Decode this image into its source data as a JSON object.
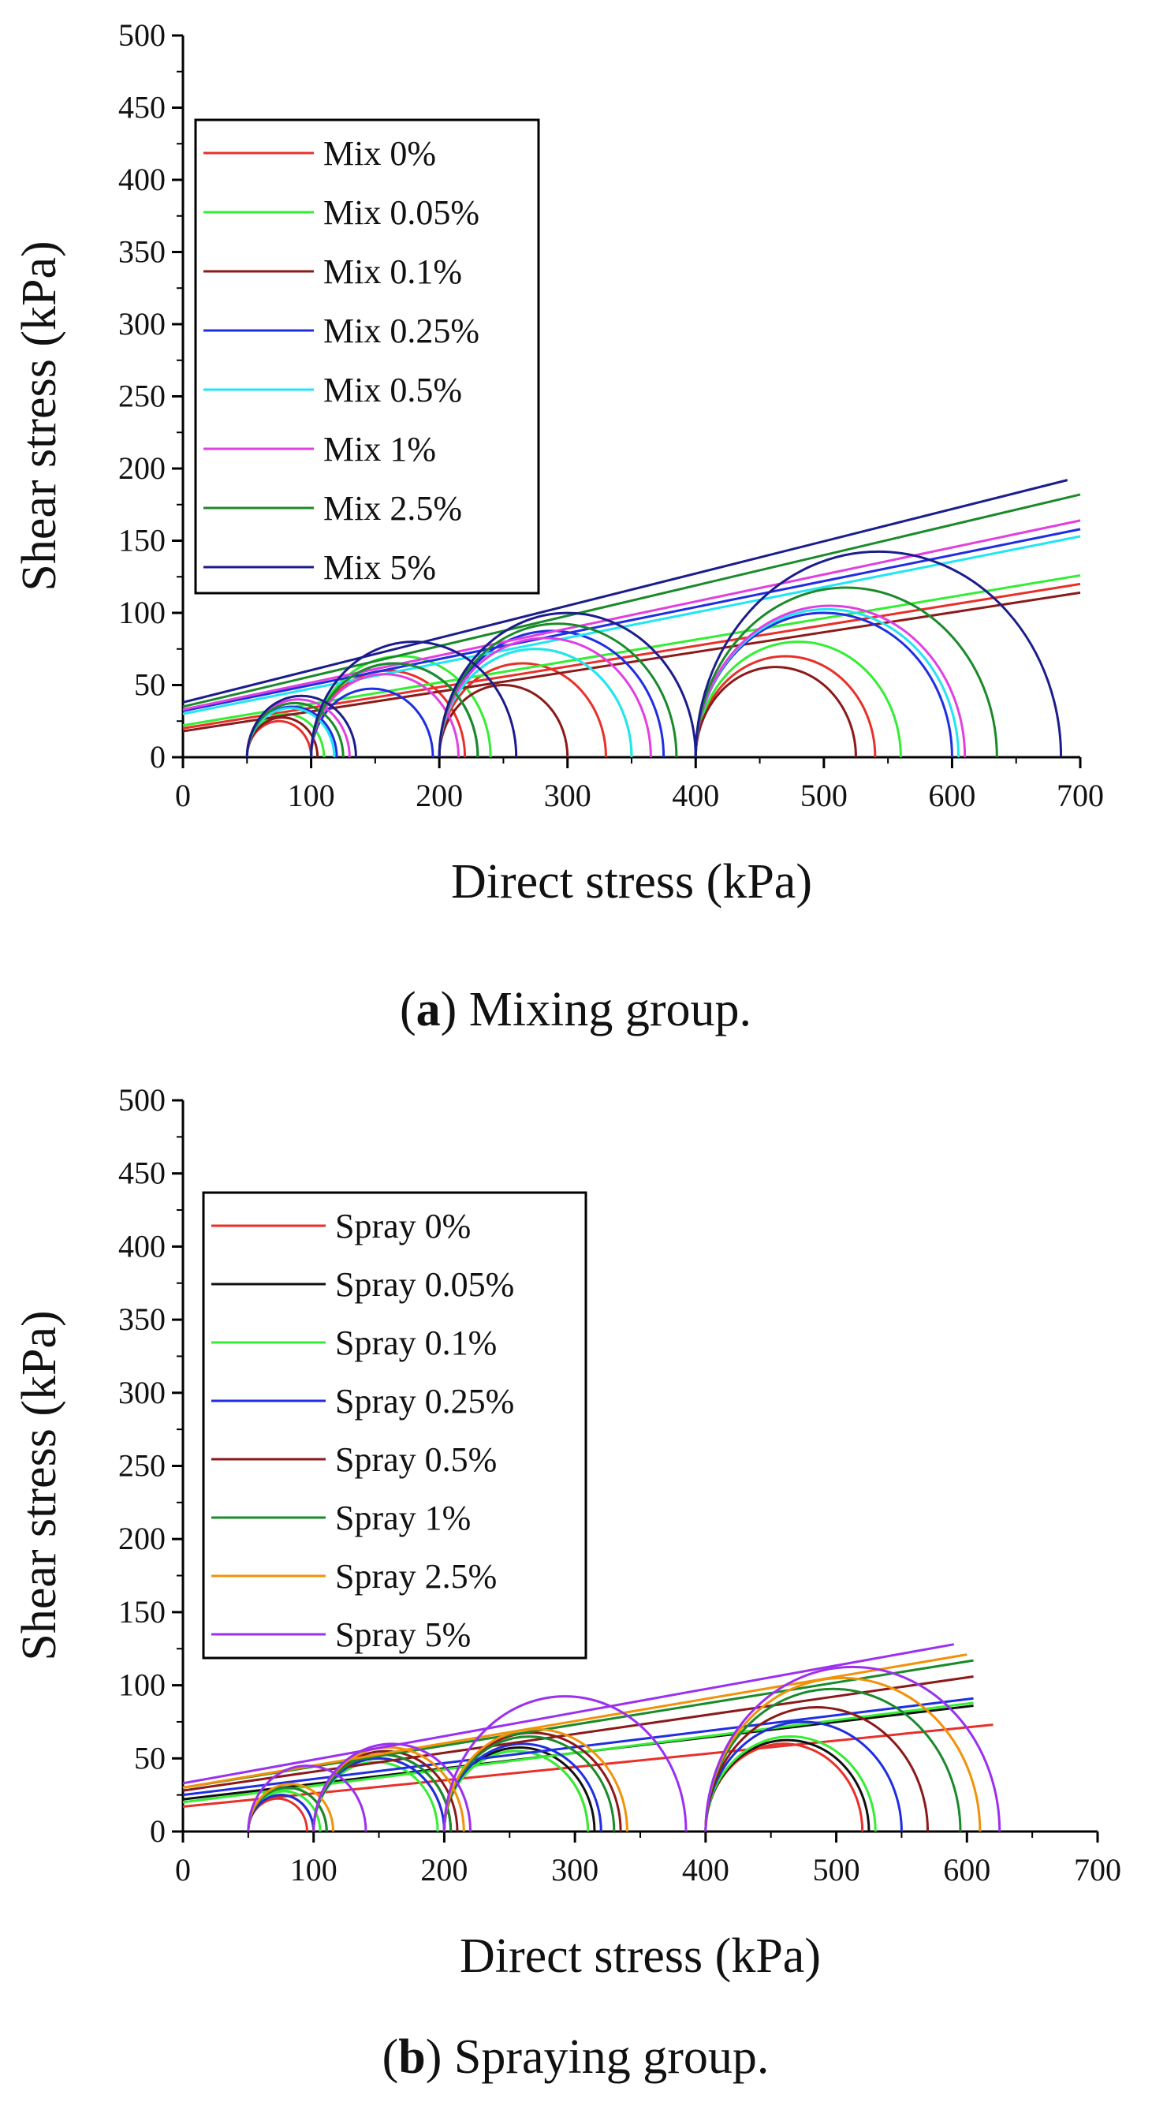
{
  "chart_data": [
    {
      "type": "line",
      "caption": {
        "label": "a",
        "text": "Mixing group."
      },
      "xlabel": "Direct stress (kPa)",
      "ylabel": "Shear stress (kPa)",
      "xlim": [
        0,
        700
      ],
      "ylim": [
        0,
        500
      ],
      "x_ticks": [
        0,
        100,
        200,
        300,
        400,
        500,
        600,
        700
      ],
      "y_ticks": [
        0,
        50,
        100,
        150,
        200,
        250,
        300,
        350,
        400,
        450,
        500
      ],
      "legend_position": "top-left",
      "series": [
        {
          "name": "Mix 0%",
          "color": "#e8302a",
          "intercept": 20,
          "end": [
            700,
            120
          ],
          "circles": [
            [
              50,
              100
            ],
            [
              100,
              220
            ],
            [
              200,
              330
            ],
            [
              400,
              540
            ]
          ]
        },
        {
          "name": "Mix 0.05%",
          "color": "#33ee33",
          "intercept": 22,
          "end": [
            700,
            126
          ],
          "circles": [
            [
              50,
              110
            ],
            [
              100,
              240
            ],
            [
              200,
              350
            ],
            [
              400,
              560
            ]
          ]
        },
        {
          "name": "Mix 0.1%",
          "color": "#8b1a1a",
          "intercept": 18,
          "end": [
            700,
            114
          ],
          "circles": [
            [
              50,
              105
            ],
            [
              100,
              230
            ],
            [
              200,
              300
            ],
            [
              400,
              525
            ]
          ]
        },
        {
          "name": "Mix 0.25%",
          "color": "#1f2ee0",
          "intercept": 32,
          "end": [
            700,
            158
          ],
          "circles": [
            [
              50,
              120
            ],
            [
              100,
              195
            ],
            [
              200,
              375
            ],
            [
              400,
              600
            ]
          ]
        },
        {
          "name": "Mix 0.5%",
          "color": "#22e5f2",
          "intercept": 30,
          "end": [
            700,
            153
          ],
          "circles": [
            [
              50,
              118
            ],
            [
              100,
              230
            ],
            [
              200,
              350
            ],
            [
              400,
              605
            ]
          ]
        },
        {
          "name": "Mix 1%",
          "color": "#e040e0",
          "intercept": 33,
          "end": [
            700,
            164
          ],
          "circles": [
            [
              50,
              130
            ],
            [
              100,
              215
            ],
            [
              200,
              365
            ],
            [
              400,
              610
            ]
          ]
        },
        {
          "name": "Mix 2.5%",
          "color": "#1a8a2a",
          "intercept": 35,
          "end": [
            700,
            182
          ],
          "circles": [
            [
              50,
              125
            ],
            [
              100,
              230
            ],
            [
              200,
              385
            ],
            [
              400,
              635
            ]
          ]
        },
        {
          "name": "Mix 5%",
          "color": "#1c1c8c",
          "intercept": 38,
          "end": [
            690,
            192
          ],
          "circles": [
            [
              50,
              135
            ],
            [
              100,
              260
            ],
            [
              200,
              400
            ],
            [
              400,
              685
            ]
          ]
        }
      ]
    },
    {
      "type": "line",
      "caption": {
        "label": "b",
        "text": "Spraying group."
      },
      "xlabel": "Direct stress (kPa)",
      "ylabel": "Shear stress (kPa)",
      "xlim": [
        0,
        700
      ],
      "ylim": [
        0,
        500
      ],
      "x_ticks": [
        0,
        100,
        200,
        300,
        400,
        500,
        600,
        700
      ],
      "y_ticks": [
        0,
        50,
        100,
        150,
        200,
        250,
        300,
        350,
        400,
        450,
        500
      ],
      "legend_position": "top-left",
      "series": [
        {
          "name": "Spray 0%",
          "color": "#e8302a",
          "intercept": 17,
          "end": [
            620,
            73
          ],
          "circles": [
            [
              50,
              95
            ],
            [
              100,
              200
            ],
            [
              200,
              310
            ],
            [
              400,
              520
            ]
          ]
        },
        {
          "name": "Spray 0.05%",
          "color": "#111111",
          "intercept": 22,
          "end": [
            605,
            86
          ],
          "circles": [
            [
              50,
              100
            ],
            [
              100,
              205
            ],
            [
              200,
              315
            ],
            [
              400,
              525
            ]
          ]
        },
        {
          "name": "Spray 0.1%",
          "color": "#33ee33",
          "intercept": 20,
          "end": [
            605,
            88
          ],
          "circles": [
            [
              50,
              105
            ],
            [
              100,
              195
            ],
            [
              200,
              310
            ],
            [
              400,
              530
            ]
          ]
        },
        {
          "name": "Spray 0.25%",
          "color": "#1f2ee0",
          "intercept": 25,
          "end": [
            605,
            91
          ],
          "circles": [
            [
              50,
              100
            ],
            [
              100,
              200
            ],
            [
              200,
              320
            ],
            [
              400,
              550
            ]
          ]
        },
        {
          "name": "Spray 0.5%",
          "color": "#8b1a1a",
          "intercept": 28,
          "end": [
            605,
            106
          ],
          "circles": [
            [
              50,
              110
            ],
            [
              100,
              210
            ],
            [
              200,
              335
            ],
            [
              400,
              570
            ]
          ]
        },
        {
          "name": "Spray 1%",
          "color": "#1a8a2a",
          "intercept": 30,
          "end": [
            605,
            117
          ],
          "circles": [
            [
              50,
              110
            ],
            [
              100,
              205
            ],
            [
              200,
              330
            ],
            [
              400,
              595
            ]
          ]
        },
        {
          "name": "Spray 2.5%",
          "color": "#f0920a",
          "intercept": 30,
          "end": [
            600,
            121
          ],
          "circles": [
            [
              50,
              115
            ],
            [
              100,
              215
            ],
            [
              200,
              340
            ],
            [
              400,
              610
            ]
          ]
        },
        {
          "name": "Spray 5%",
          "color": "#9b30f0",
          "intercept": 33,
          "end": [
            590,
            128
          ],
          "circles": [
            [
              50,
              140
            ],
            [
              100,
              220
            ],
            [
              200,
              385
            ],
            [
              400,
              625
            ]
          ]
        }
      ]
    }
  ]
}
